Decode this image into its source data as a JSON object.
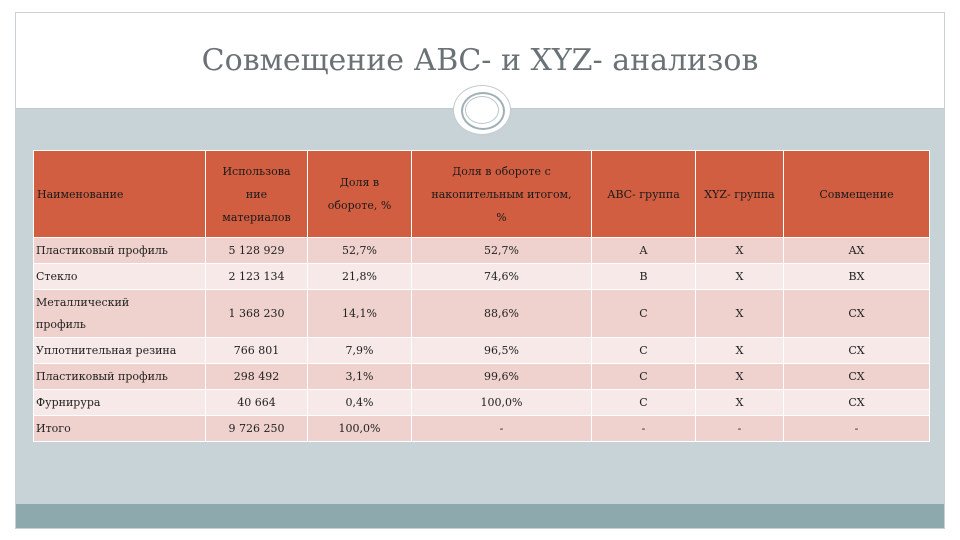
{
  "slide": {
    "title": "Совмещение АВС- и XYZ- анализов"
  },
  "table": {
    "headers": {
      "name": "Наименование",
      "usage_1": "Использова",
      "usage_2": "ние",
      "usage_3": "материалов",
      "share_1": "Доля в",
      "share_2": "обороте, %",
      "cumulative_1": "Доля в обороте с",
      "cumulative_2": "накопительным итогом,",
      "cumulative_3": "%",
      "abc": "АВС- группа",
      "xyz": "XYZ- группа",
      "combined": "Совмещение"
    },
    "rows": [
      {
        "name": "Пластиковый профиль",
        "usage": "5 128 929",
        "share": "52,7%",
        "cumulative": "52,7%",
        "abc": "A",
        "xyz": "X",
        "combined": "AX"
      },
      {
        "name": "Стекло",
        "usage": "2 123 134",
        "share": "21,8%",
        "cumulative": "74,6%",
        "abc": "B",
        "xyz": "X",
        "combined": "BX"
      },
      {
        "name_1": "Металлический",
        "name_2": "профиль",
        "usage": "1 368 230",
        "share": "14,1%",
        "cumulative": "88,6%",
        "abc": "C",
        "xyz": "X",
        "combined": "CX"
      },
      {
        "name": "Уплотнительная резина",
        "usage": "766 801",
        "share": "7,9%",
        "cumulative": "96,5%",
        "abc": "C",
        "xyz": "X",
        "combined": "CX"
      },
      {
        "name": "Пластиковый профиль",
        "usage": "298 492",
        "share": "3,1%",
        "cumulative": "99,6%",
        "abc": "C",
        "xyz": "X",
        "combined": "CX"
      },
      {
        "name": "Фурнирура",
        "usage": "40 664",
        "share": "0,4%",
        "cumulative": "100,0%",
        "abc": "C",
        "xyz": "X",
        "combined": "CX"
      },
      {
        "name": "Итого",
        "usage": "9 726 250",
        "share": "100,0%",
        "cumulative": "-",
        "abc": "-",
        "xyz": "-",
        "combined": "-"
      }
    ]
  },
  "colors": {
    "header": "#d25e41",
    "row_dark": "#efd2cd",
    "row_light": "#f6e9e7",
    "body_background": "#c8d3d8",
    "footer_bar": "#8ea9ae"
  },
  "icons": {
    "ornament": "oval-ring-ornament"
  }
}
